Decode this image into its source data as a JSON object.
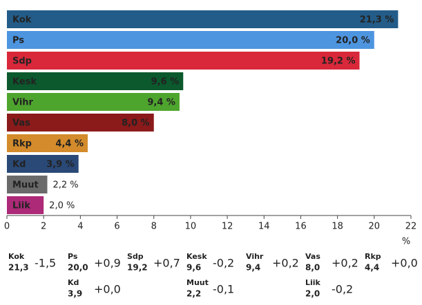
{
  "chart_data": {
    "type": "bar",
    "orientation": "horizontal",
    "categories": [
      "Kok",
      "Ps",
      "Sdp",
      "Kesk",
      "Vihr",
      "Vas",
      "Rkp",
      "Kd",
      "Muut",
      "Liik"
    ],
    "values": [
      21.3,
      20.0,
      19.2,
      9.6,
      9.4,
      8.0,
      4.4,
      3.9,
      2.2,
      2.0
    ],
    "value_labels": [
      "21,3 %",
      "20,0 %",
      "19,2 %",
      "9,6 %",
      "9,4 %",
      "8,0 %",
      "4,4 %",
      "3,9 %",
      "2,2 %",
      "2,0 %"
    ],
    "colors": [
      "#235c88",
      "#4e95e0",
      "#d8283a",
      "#0b592d",
      "#4ea52e",
      "#8b1a1a",
      "#d38b2b",
      "#2a4977",
      "#6a6a6a",
      "#ad2a78"
    ],
    "xlim": [
      0,
      22
    ],
    "xticks": [
      0,
      2,
      4,
      6,
      8,
      10,
      12,
      14,
      16,
      18,
      20,
      22
    ],
    "x_label": "%"
  },
  "summary": {
    "items": [
      {
        "party": "Kok",
        "share": "21,3",
        "change": "-1,5",
        "color": "#235c88"
      },
      {
        "party": "Ps",
        "share": "20,0",
        "change": "+0,9",
        "color": "#4e95e0"
      },
      {
        "party": "Sdp",
        "share": "19,2",
        "change": "+0,7",
        "color": "#d8283a"
      },
      {
        "party": "Kesk",
        "share": "9,6",
        "change": "-0,2",
        "color": "#0b592d"
      },
      {
        "party": "Vihr",
        "share": "9,4",
        "change": "+0,2",
        "color": "#4ea52e"
      },
      {
        "party": "Vas",
        "share": "8,0",
        "change": "+0,2",
        "color": "#8b1a1a"
      },
      {
        "party": "Rkp",
        "share": "4,4",
        "change": "+0,0",
        "color": "#d38b2b"
      },
      {
        "party": "Kd",
        "share": "3,9",
        "change": "+0,0",
        "color": "#2a4977"
      },
      {
        "party": "Muut",
        "share": "2,2",
        "change": "-0,1",
        "color": "#6a6a6a"
      },
      {
        "party": "Liik",
        "share": "2,0",
        "change": "-0,2",
        "color": "#ad2a78"
      }
    ]
  }
}
